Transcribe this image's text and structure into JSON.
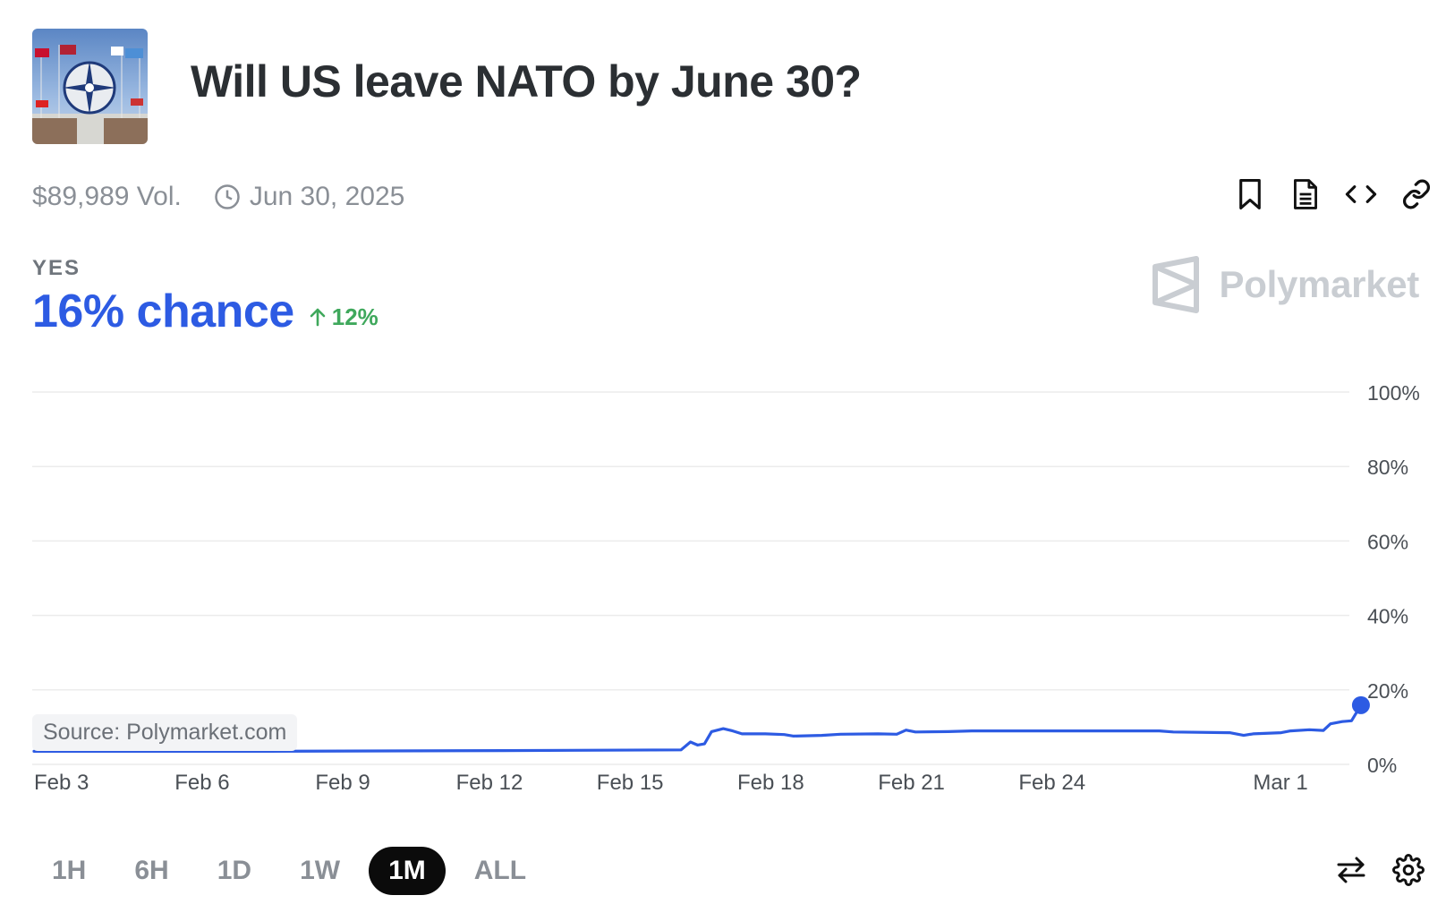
{
  "market": {
    "title": "Will US leave NATO by June 30?",
    "volume": "$89,989 Vol.",
    "end_date": "Jun 30, 2025"
  },
  "outcome": {
    "label": "YES",
    "chance": "16% chance",
    "change": "12%"
  },
  "brand": {
    "name": "Polymarket"
  },
  "source": "Source: Polymarket.com",
  "timeframes": [
    "1H",
    "6H",
    "1D",
    "1W",
    "1M",
    "ALL"
  ],
  "active_timeframe": "1M",
  "icons": {
    "clock": "clock-icon",
    "bookmark": "bookmark-icon",
    "document": "document-icon",
    "embed": "code-icon",
    "link": "link-icon",
    "swap": "swap-arrows-icon",
    "settings": "gear-icon"
  },
  "colors": {
    "line": "#2d5be3",
    "positive": "#3fa85c",
    "grid": "#ececec",
    "axis_text": "#4a4f55",
    "active_tab_bg": "#0b0b0b"
  },
  "chart_data": {
    "type": "line",
    "title": "Will US leave NATO by June 30?",
    "series_name": "YES",
    "xlabel": "",
    "ylabel": "",
    "x_start_day": 0,
    "x_end_day": 27.7,
    "y_range": [
      0,
      100
    ],
    "y_ticks": [
      100,
      80,
      60,
      40,
      20,
      0
    ],
    "y_tick_labels": [
      "100%",
      "80%",
      "60%",
      "40%",
      "20%",
      "0%"
    ],
    "x_ticks": [
      {
        "day": 0,
        "label": "Feb 3"
      },
      {
        "day": 3,
        "label": "Feb 6"
      },
      {
        "day": 6,
        "label": "Feb 9"
      },
      {
        "day": 9,
        "label": "Feb 12"
      },
      {
        "day": 12,
        "label": "Feb 15"
      },
      {
        "day": 15,
        "label": "Feb 18"
      },
      {
        "day": 18,
        "label": "Feb 21"
      },
      {
        "day": 21,
        "label": "Feb 24"
      },
      {
        "day": 26,
        "label": "Mar 1"
      }
    ],
    "grid": true,
    "points": [
      [
        0,
        3.5
      ],
      [
        5,
        3.5
      ],
      [
        10,
        3.7
      ],
      [
        13.8,
        3.9
      ],
      [
        14.0,
        6.0
      ],
      [
        14.15,
        5.2
      ],
      [
        14.3,
        5.5
      ],
      [
        14.45,
        8.8
      ],
      [
        14.7,
        9.6
      ],
      [
        14.9,
        9.0
      ],
      [
        15.1,
        8.2
      ],
      [
        15.6,
        8.2
      ],
      [
        16.0,
        8.0
      ],
      [
        16.2,
        7.6
      ],
      [
        16.8,
        7.8
      ],
      [
        17.2,
        8.1
      ],
      [
        18.0,
        8.2
      ],
      [
        18.4,
        8.1
      ],
      [
        18.6,
        9.2
      ],
      [
        18.8,
        8.7
      ],
      [
        19.5,
        8.8
      ],
      [
        20.0,
        9.0
      ],
      [
        22.0,
        9.0
      ],
      [
        24.0,
        9.0
      ],
      [
        24.3,
        8.7
      ],
      [
        25.5,
        8.5
      ],
      [
        25.8,
        7.8
      ],
      [
        26.0,
        8.2
      ],
      [
        26.6,
        8.5
      ],
      [
        26.8,
        9.0
      ],
      [
        27.2,
        9.3
      ],
      [
        27.5,
        9.1
      ],
      [
        27.65,
        10.9
      ],
      [
        27.9,
        11.5
      ],
      [
        28.1,
        11.7
      ],
      [
        28.3,
        15.9
      ]
    ],
    "last_value": 16
  }
}
